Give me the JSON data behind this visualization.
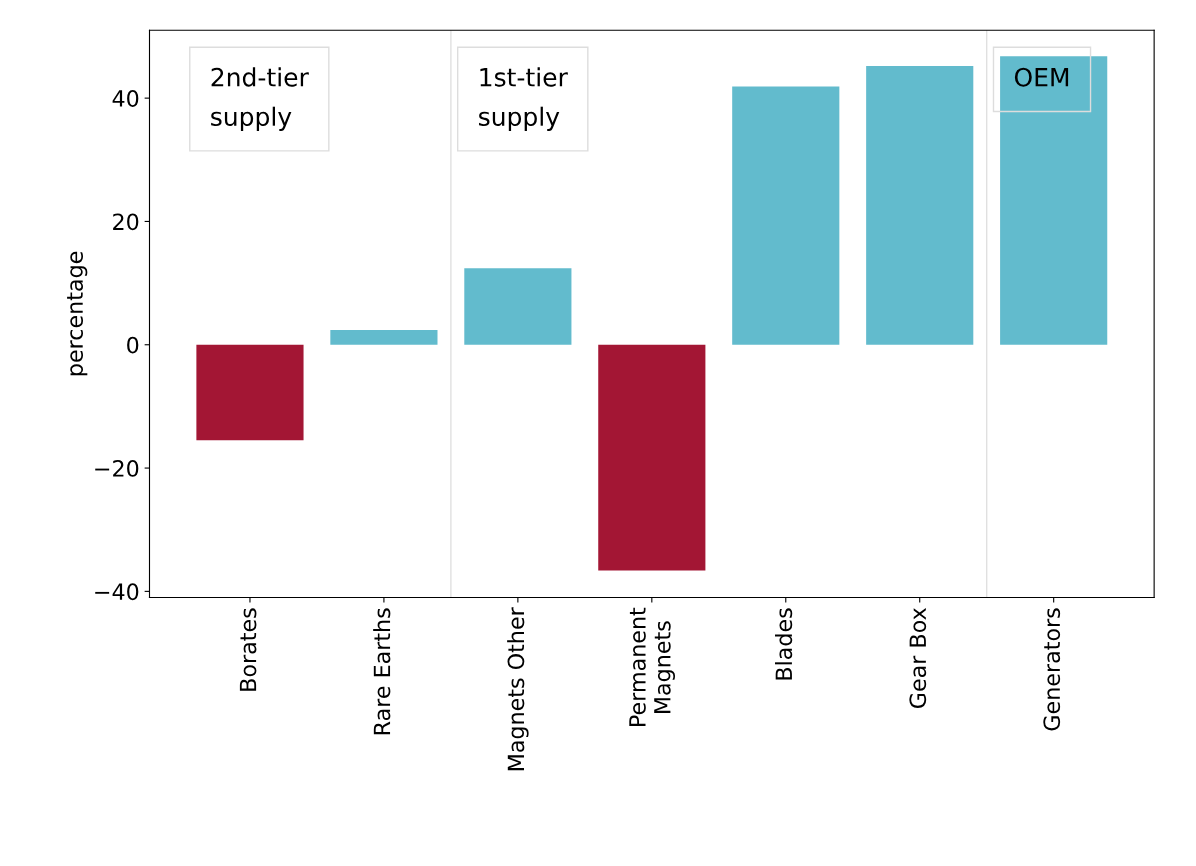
{
  "chart_data": {
    "type": "bar",
    "ylabel": "percentage",
    "categories": [
      "Borates",
      "Rare Earths",
      "Magnets Other",
      "Permanent\nMagnets",
      "Blades",
      "Gear Box",
      "Generators"
    ],
    "values": [
      -15.5,
      2.4,
      12.4,
      -36.6,
      41.9,
      45.2,
      46.8
    ],
    "colors": [
      "#a31634",
      "#62bbcd",
      "#62bbcd",
      "#a31634",
      "#62bbcd",
      "#62bbcd",
      "#62bbcd"
    ],
    "ylim": [
      -41,
      51
    ],
    "yticks": [
      -40,
      -20,
      0,
      20,
      40
    ],
    "grid": false,
    "annotations": [
      "2nd-tier\nsupply",
      "1st-tier\nsupply",
      "OEM"
    ]
  }
}
